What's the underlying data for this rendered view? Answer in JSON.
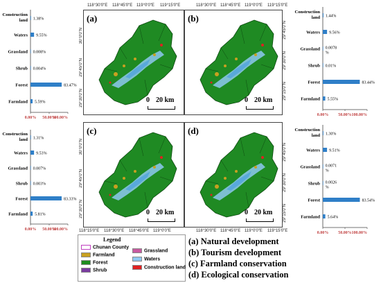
{
  "maps": [
    {
      "id": "a",
      "label": "(a)"
    },
    {
      "id": "b",
      "label": "(b)"
    },
    {
      "id": "c",
      "label": "(c)"
    },
    {
      "id": "d",
      "label": "(d)"
    }
  ],
  "scale_bar": {
    "zero": "0",
    "distance": "20 km"
  },
  "coords": {
    "top": [
      "118°30'0\"E",
      "118°45'0\"E",
      "119°0'0\"E",
      "119°15'0\"E"
    ],
    "top_right": [
      "118°30'0\"E",
      "118°45'0\"E",
      "119°0'0\"E",
      "119°15'0\"E"
    ],
    "bottom_left": [
      "118°15'0\"E",
      "118°30'0\"E",
      "118°45'0\"E",
      "119°0'0\"E"
    ],
    "bottom_right": [
      "118°30'0\"E",
      "118°45'0\"E",
      "119°0'0\"E",
      "119°15'0\"E"
    ],
    "lat": [
      "30°0'0\"N",
      "29°45'0\"N",
      "29°30'0\"N",
      "29°15'0\"N"
    ]
  },
  "legend": {
    "title": "Legend",
    "items": [
      {
        "label": "Chunan County",
        "color": "#ffffff"
      },
      {
        "label": "Farmland",
        "color": "#c8a020"
      },
      {
        "label": "Forest",
        "color": "#1e8c1e"
      },
      {
        "label": "Shrub",
        "color": "#7a3aa0"
      },
      {
        "label": "Grassland",
        "color": "#c85aa0"
      },
      {
        "label": "Waters",
        "color": "#8ec8f0"
      },
      {
        "label": "Construction land",
        "color": "#e02020"
      }
    ]
  },
  "scenarios": [
    "(a) Natural development",
    "(b) Tourism development",
    "(c) Farmland conservation",
    "(d) Ecological conservation"
  ],
  "colors": {
    "bar": "#2f7fc8",
    "axis_tick": "#c04040"
  },
  "chart_data": [
    {
      "type": "bar",
      "orientation": "horizontal",
      "panel": "a",
      "categories": [
        "Construction land",
        "Waters",
        "Grassland",
        "Shrub",
        "Forest",
        "Farmland"
      ],
      "values": [
        1.38,
        9.55,
        0.008,
        0.004,
        83.47,
        5.59
      ],
      "value_labels": [
        "1.38%",
        "9.55%",
        "0.008%",
        "0.004%",
        "83.47%",
        "5.59%"
      ],
      "ticks": [
        "0.00%",
        "50.00%",
        "100.00%"
      ],
      "xlim": [
        0,
        100
      ]
    },
    {
      "type": "bar",
      "orientation": "horizontal",
      "panel": "b",
      "categories": [
        "Construction land",
        "Waters",
        "Grassland",
        "Shrub",
        "Forest",
        "Farmland"
      ],
      "values": [
        1.44,
        9.56,
        0.0078,
        0.01,
        83.44,
        5.55
      ],
      "value_labels": [
        "1.44%",
        "9.56%",
        "0.0078 %",
        "0.01%",
        "83.44%",
        "5.55%"
      ],
      "ticks": [
        "0.00%",
        "50.00%",
        "100.00%"
      ],
      "xlim": [
        0,
        100
      ]
    },
    {
      "type": "bar",
      "orientation": "horizontal",
      "panel": "c",
      "categories": [
        "Construction land",
        "Waters",
        "Grassland",
        "Shrub",
        "Forest",
        "Farmland"
      ],
      "values": [
        1.31,
        9.53,
        0.007,
        0.003,
        83.33,
        5.81
      ],
      "value_labels": [
        "1.31%",
        "9.53%",
        "0.007%",
        "0.003%",
        "83.33%",
        "5.81%"
      ],
      "ticks": [
        "0.00%",
        "50.00%",
        "100.00%"
      ],
      "xlim": [
        0,
        100
      ]
    },
    {
      "type": "bar",
      "orientation": "horizontal",
      "panel": "d",
      "categories": [
        "Construction land",
        "Waters",
        "Grassland",
        "Shrub",
        "Forest",
        "Farmland"
      ],
      "values": [
        1.3,
        9.51,
        0.0071,
        0.0026,
        83.54,
        5.64
      ],
      "value_labels": [
        "1.30%",
        "9.51%",
        "0.0071 %",
        "0.0026 %",
        "83.54%",
        "5.64%"
      ],
      "ticks": [
        "0.00%",
        "50.00%",
        "100.00%"
      ],
      "xlim": [
        0,
        100
      ]
    }
  ]
}
